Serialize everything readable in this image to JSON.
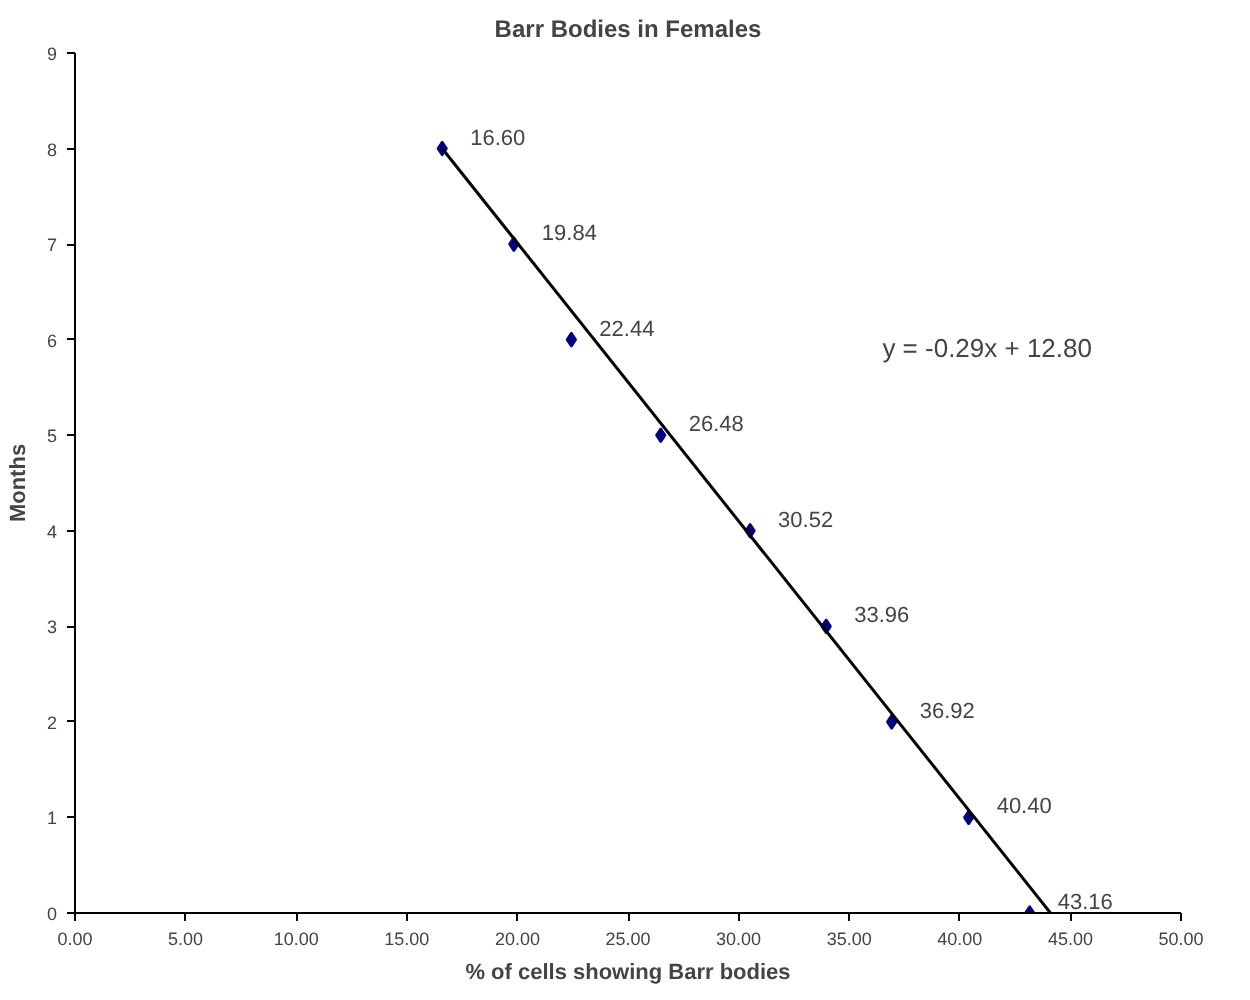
{
  "chart_data": {
    "type": "scatter",
    "title": "Barr Bodies in Females",
    "xlabel": "% of cells showing Barr bodies",
    "ylabel": "Months",
    "xlim": [
      0,
      50
    ],
    "ylim": [
      0,
      9
    ],
    "xticks": [
      {
        "value": 0,
        "label": "0.00"
      },
      {
        "value": 5,
        "label": "5.00"
      },
      {
        "value": 10,
        "label": "10.00"
      },
      {
        "value": 15,
        "label": "15.00"
      },
      {
        "value": 20,
        "label": "20.00"
      },
      {
        "value": 25,
        "label": "25.00"
      },
      {
        "value": 30,
        "label": "30.00"
      },
      {
        "value": 35,
        "label": "35.00"
      },
      {
        "value": 40,
        "label": "40.00"
      },
      {
        "value": 45,
        "label": "45.00"
      },
      {
        "value": 50,
        "label": "50.00"
      }
    ],
    "yticks": [
      0,
      1,
      2,
      3,
      4,
      5,
      6,
      7,
      8,
      9
    ],
    "grid": false,
    "series": [
      {
        "marker": "diamond",
        "color": "#000080",
        "x": [
          16.6,
          19.84,
          22.44,
          26.48,
          30.52,
          33.96,
          36.92,
          40.4,
          43.16
        ],
        "values": [
          8,
          7,
          6,
          5,
          4,
          3,
          2,
          1,
          0
        ]
      },
      {
        "type": "line",
        "color": "#000000",
        "x": [
          16.6,
          44.1
        ],
        "values": [
          8.0,
          0.0
        ]
      }
    ],
    "annotations": [
      {
        "text": "16.60",
        "x": 16.6,
        "y": 8
      },
      {
        "text": "19.84",
        "x": 19.84,
        "y": 7
      },
      {
        "text": "22.44",
        "x": 22.44,
        "y": 6
      },
      {
        "text": "26.48",
        "x": 26.48,
        "y": 5
      },
      {
        "text": "30.52",
        "x": 30.52,
        "y": 4
      },
      {
        "text": "33.96",
        "x": 33.96,
        "y": 3
      },
      {
        "text": "36.92",
        "x": 36.92,
        "y": 2
      },
      {
        "text": "40.40",
        "x": 40.4,
        "y": 1
      },
      {
        "text": "43.16",
        "x": 43.16,
        "y": 0
      },
      "y = -0.29x + 12.80"
    ]
  }
}
